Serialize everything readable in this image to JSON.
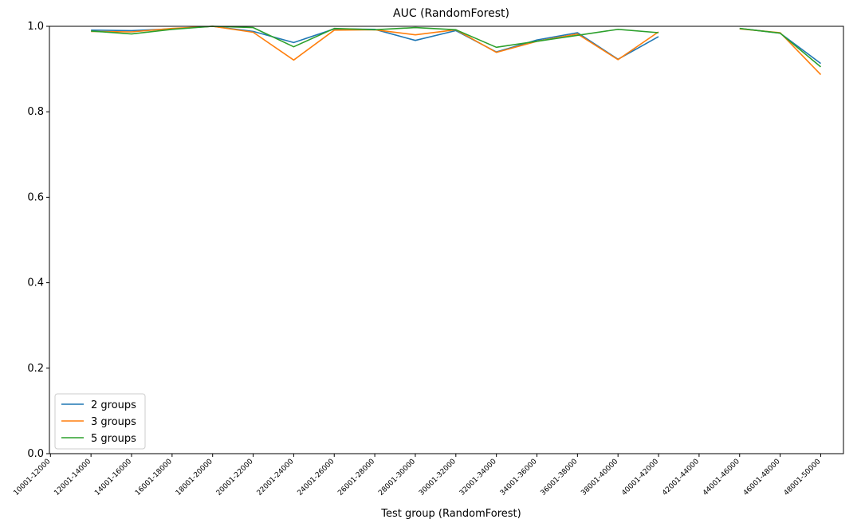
{
  "chart_data": {
    "type": "line",
    "title": "AUC (RandomForest)",
    "xlabel": "Test group (RandomForest)",
    "ylabel": "",
    "ylim": [
      0,
      1.0
    ],
    "yticks": [
      "0.0",
      "0.2",
      "0.4",
      "0.6",
      "0.8",
      "1.0"
    ],
    "categories": [
      "10001-12000",
      "12001-14000",
      "14001-16000",
      "16001-18000",
      "18001-20000",
      "20001-22000",
      "22001-24000",
      "24001-26000",
      "26001-28000",
      "28001-30000",
      "30001-32000",
      "32001-34000",
      "34001-36000",
      "36001-38000",
      "38001-40000",
      "40001-42000",
      "42001-44000",
      "44001-46000",
      "46001-48000",
      "48001-50000"
    ],
    "legend_position": "lower-left",
    "grid": false,
    "series": [
      {
        "name": "2 groups",
        "color": "#1f77b4",
        "values": [
          null,
          0.991,
          0.99,
          0.994,
          1.0,
          0.988,
          0.962,
          0.994,
          0.993,
          0.967,
          0.99,
          0.94,
          0.968,
          0.985,
          0.923,
          0.976,
          null,
          0.995,
          0.984,
          0.913
        ]
      },
      {
        "name": "3 groups",
        "color": "#ff7f0e",
        "values": [
          null,
          0.988,
          0.987,
          0.995,
          1.0,
          0.986,
          0.921,
          0.991,
          0.992,
          0.98,
          0.992,
          0.939,
          0.965,
          0.982,
          0.922,
          0.987,
          null,
          0.994,
          0.985,
          0.887
        ]
      },
      {
        "name": "5 groups",
        "color": "#2ca02c",
        "values": [
          null,
          0.989,
          0.982,
          0.993,
          1.0,
          0.997,
          0.952,
          0.995,
          0.992,
          0.997,
          0.992,
          0.951,
          0.965,
          0.979,
          0.993,
          0.985,
          null,
          0.995,
          0.984,
          0.905
        ]
      }
    ]
  }
}
